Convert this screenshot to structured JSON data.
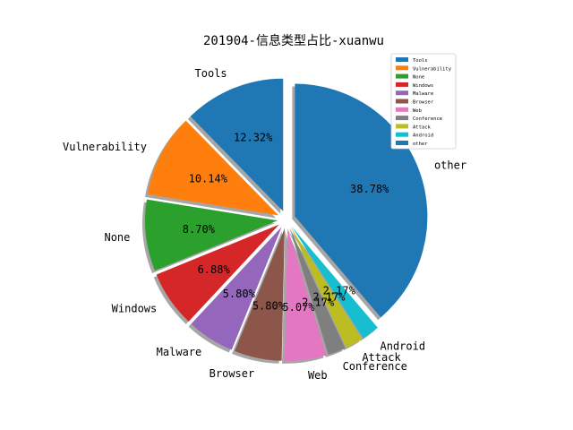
{
  "chart_data": {
    "type": "pie",
    "title": "201904-信息类型占比-xuanwu",
    "categories": [
      "Tools",
      "Vulnerability",
      "None",
      "Windows",
      "Malware",
      "Browser",
      "Web",
      "Conference",
      "Attack",
      "Android",
      "other"
    ],
    "values": [
      12.32,
      10.14,
      8.7,
      6.88,
      5.8,
      5.8,
      5.07,
      2.17,
      2.17,
      2.17,
      38.78
    ],
    "percent_labels": [
      "12.32%",
      "10.14%",
      "8.70%",
      "6.88%",
      "5.80%",
      "5.80%",
      "5.07%",
      "2.17%",
      "2.17%",
      "2.17%",
      "38.78%"
    ],
    "colors": [
      "#1f77b4",
      "#ff7f0e",
      "#2ca02c",
      "#d62728",
      "#9467bd",
      "#8c564b",
      "#e377c2",
      "#7f7f7f",
      "#bcbd22",
      "#17becf",
      "#1f77b4"
    ],
    "exploded": true,
    "shadow": true,
    "start_angle": 90,
    "direction": "counterclockwise",
    "legend": {
      "placement": "top-right",
      "entries": [
        "Tools",
        "Vulnerability",
        "None",
        "Windows",
        "Malware",
        "Browser",
        "Web",
        "Conference",
        "Attack",
        "Android",
        "other"
      ]
    }
  }
}
